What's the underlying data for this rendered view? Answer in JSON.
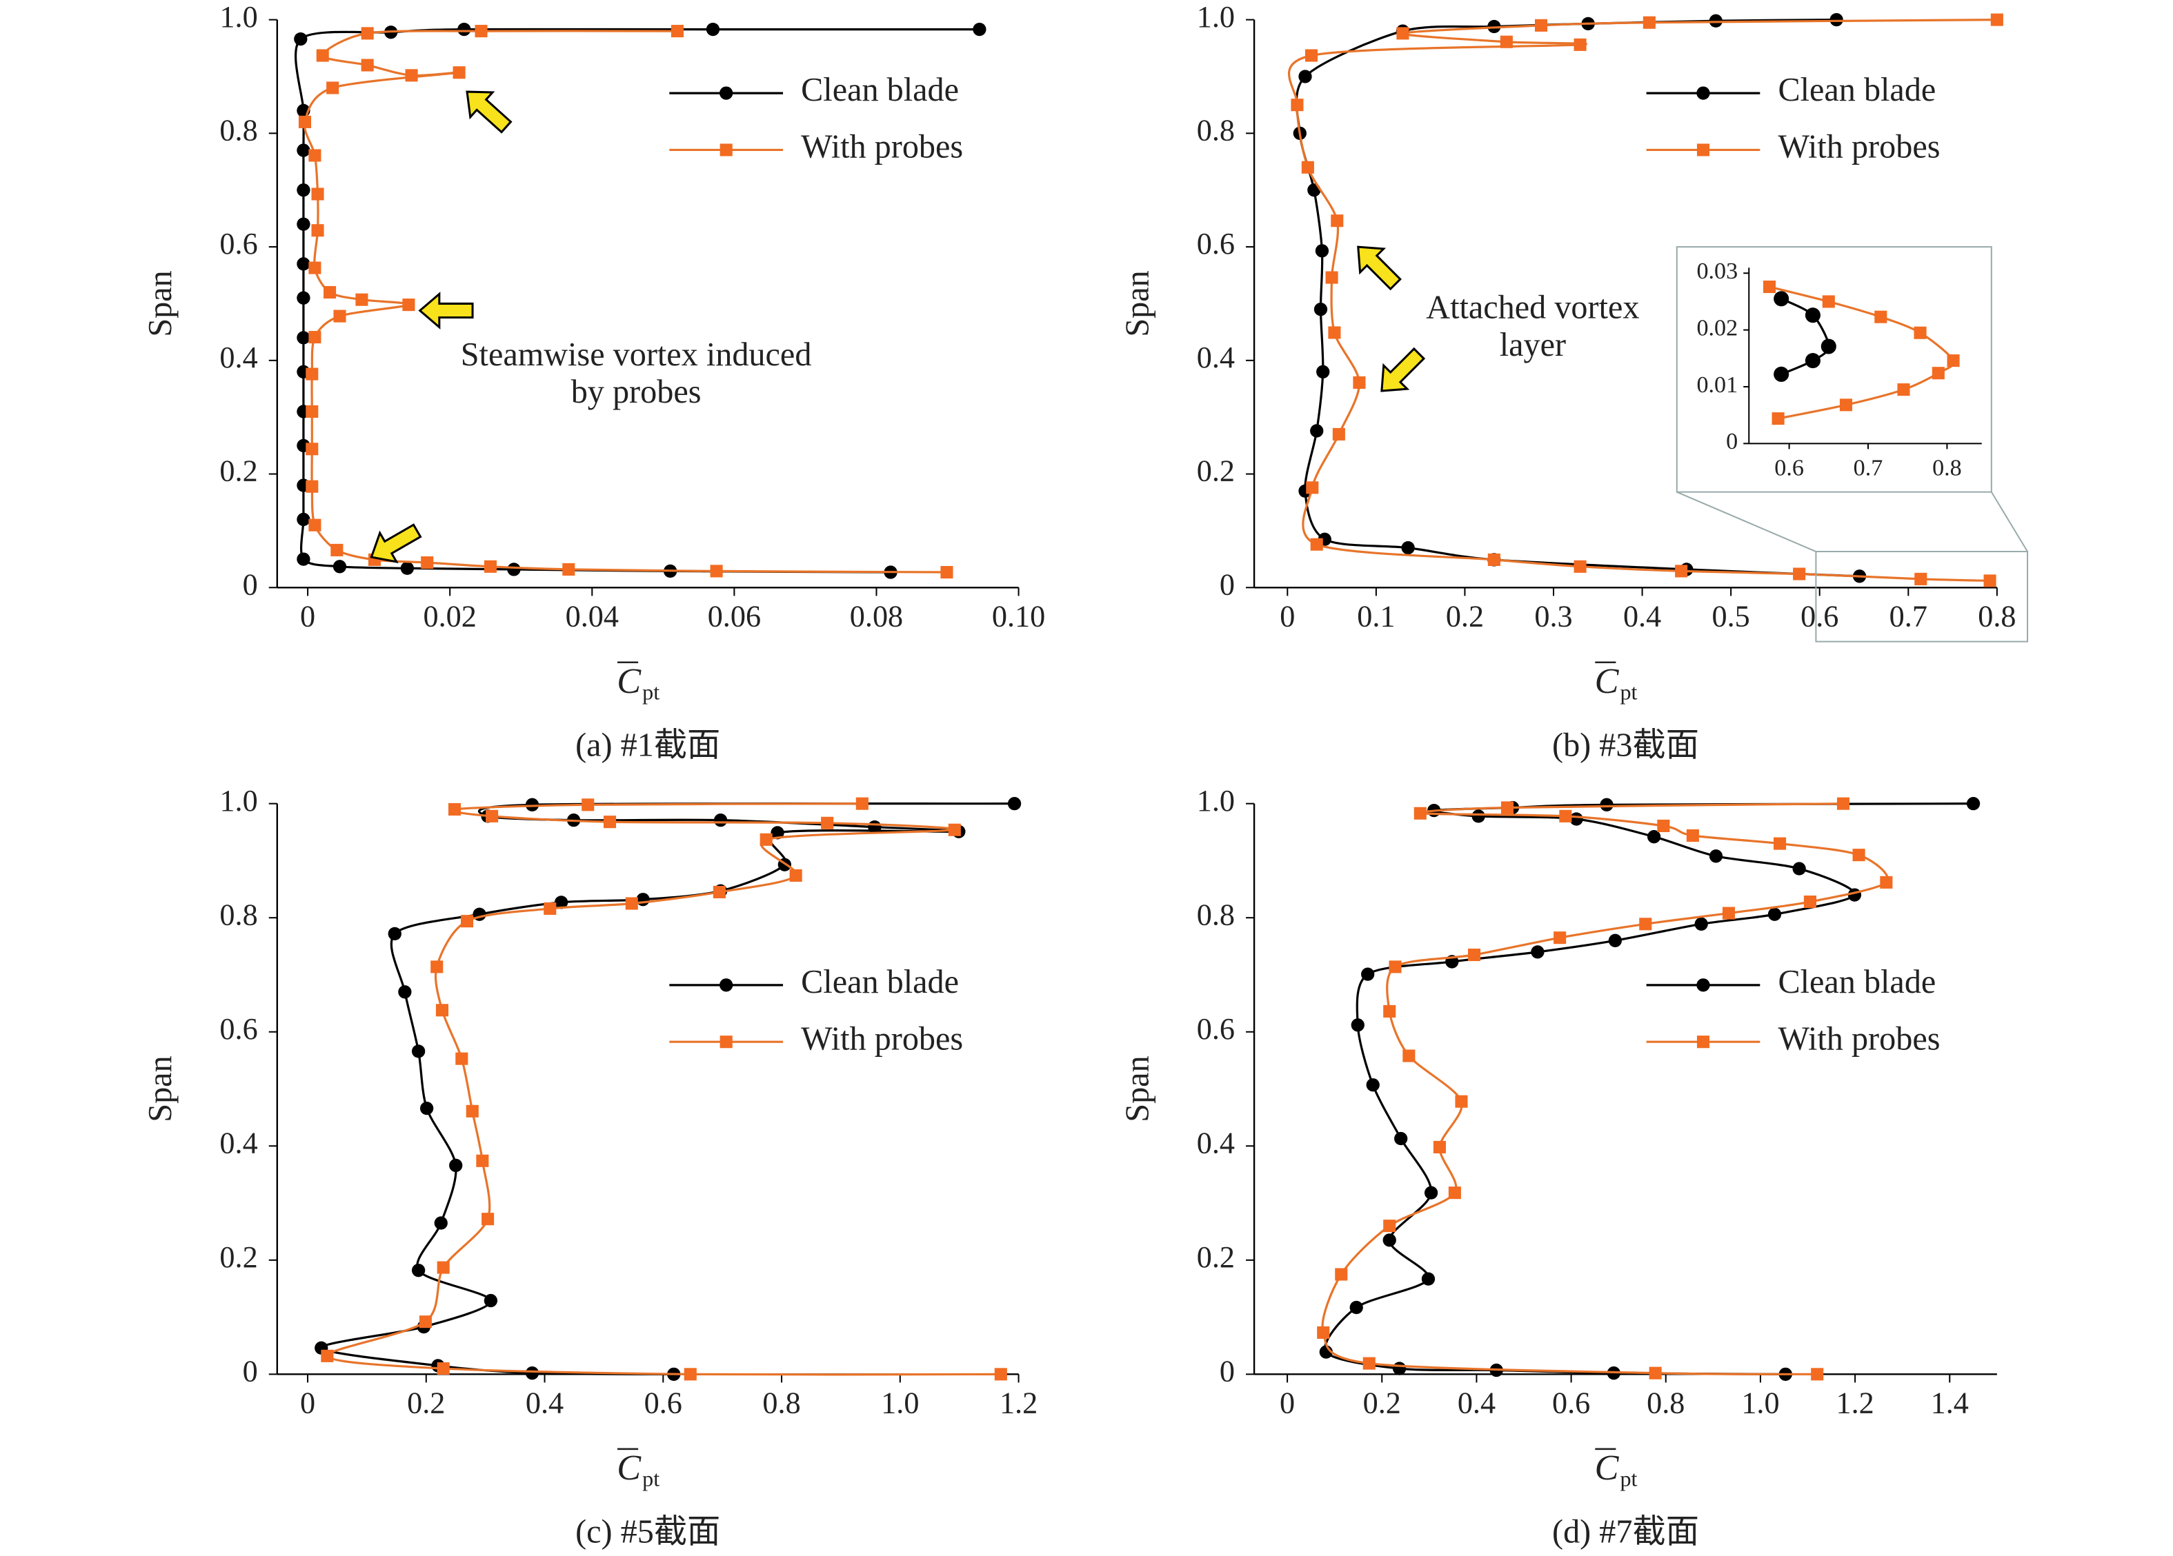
{
  "chart_data": [
    {
      "type": "line",
      "caption": "(a) #1截面",
      "xlabel": "C",
      "xlabel_sub": "pt",
      "ylabel": "Span",
      "xlim": [
        -0.0043,
        0.1
      ],
      "ylim": [
        0,
        1
      ],
      "xticks": [
        0,
        0.02,
        0.04,
        0.06,
        0.08,
        {
          "value": 0.1,
          "label": "0.10"
        }
      ],
      "yticks": [
        0,
        0.2,
        0.4,
        0.6,
        0.8,
        {
          "value": 1,
          "label": "1.0"
        }
      ],
      "legend": "upper right",
      "annotation": [
        "Steamwise vortex induced",
        "by probes"
      ],
      "series": [
        {
          "name": "Clean blade",
          "color": "#000000",
          "marker": "circle",
          "x": [
            0.0945,
            0.057,
            0.022,
            0.0117,
            -0.001,
            -0.0006,
            -0.0006,
            -0.0006,
            -0.0006,
            -0.0006,
            -0.0006,
            -0.0006,
            -0.0006,
            -0.0006,
            -0.0006,
            -0.0006,
            -0.0006,
            -0.0006,
            0.0045,
            0.014,
            0.029,
            0.051,
            0.082
          ],
          "values": [
            0.983,
            0.983,
            0.983,
            0.978,
            0.966,
            0.84,
            0.77,
            0.7,
            0.64,
            0.57,
            0.51,
            0.44,
            0.38,
            0.31,
            0.25,
            0.18,
            0.12,
            0.05,
            0.037,
            0.034,
            0.032,
            0.029,
            0.027
          ]
        },
        {
          "name": "With probes",
          "color": "#f26b21",
          "marker": "square",
          "x": [
            0.052,
            0.0244,
            0.0084,
            0.0021,
            0.0084,
            0.0146,
            0.0213,
            0.0035,
            -0.0004,
            0.001,
            0.0014,
            0.0014,
            0.001,
            0.0031,
            0.0076,
            0.0142,
            0.0045,
            0.001,
            0.0006,
            0.0006,
            0.0006,
            0.0006,
            0.001,
            0.0041,
            0.0094,
            0.0168,
            0.0257,
            0.0367,
            0.0575,
            0.0899
          ],
          "values": [
            0.98,
            0.98,
            0.976,
            0.937,
            0.92,
            0.902,
            0.907,
            0.88,
            0.82,
            0.761,
            0.693,
            0.629,
            0.563,
            0.52,
            0.507,
            0.498,
            0.478,
            0.441,
            0.376,
            0.31,
            0.244,
            0.178,
            0.11,
            0.066,
            0.049,
            0.044,
            0.037,
            0.032,
            0.029,
            0.027
          ]
        }
      ]
    },
    {
      "type": "line",
      "caption": "(b) #3截面",
      "xlabel": "C",
      "xlabel_sub": "pt",
      "ylabel": "Span",
      "xlim": [
        -0.0375,
        0.8
      ],
      "ylim": [
        0,
        1
      ],
      "xticks": [
        0,
        0.1,
        0.2,
        0.3,
        0.4,
        0.5,
        0.6,
        0.7,
        0.8
      ],
      "yticks": [
        0,
        0.2,
        0.4,
        0.6,
        0.8,
        {
          "value": 1,
          "label": "1.0"
        }
      ],
      "legend": "upper right",
      "annotation": [
        "Attached vortex",
        "layer"
      ],
      "series": [
        {
          "name": "Clean blade",
          "color": "#000000",
          "marker": "circle",
          "x": [
            0.619,
            0.483,
            0.339,
            0.233,
            0.13,
            0.02,
            0.014,
            0.03,
            0.039,
            0.0375,
            0.04,
            0.033,
            0.02,
            0.042,
            0.136,
            0.233,
            0.45,
            0.645
          ],
          "values": [
            1,
            0.998,
            0.993,
            0.988,
            0.98,
            0.9,
            0.8,
            0.7,
            0.593,
            0.49,
            0.38,
            0.276,
            0.17,
            0.085,
            0.07,
            0.049,
            0.032,
            0.02
          ]
        },
        {
          "name": "With probes",
          "color": "#f26b21",
          "marker": "square",
          "x": [
            0.8,
            0.408,
            0.286,
            0.13,
            0.247,
            0.33,
            0.027,
            0.011,
            0.023,
            0.056,
            0.05,
            0.053,
            0.081,
            0.058,
            0.028,
            0.033,
            0.233,
            0.33,
            0.444,
            0.577,
            0.714,
            0.792
          ],
          "values": [
            1,
            0.995,
            0.99,
            0.976,
            0.961,
            0.956,
            0.937,
            0.85,
            0.74,
            0.646,
            0.546,
            0.449,
            0.361,
            0.27,
            0.176,
            0.076,
            0.049,
            0.037,
            0.029,
            0.024,
            0.015,
            0.012
          ]
        }
      ],
      "inset": {
        "xlim": [
          0.549,
          0.844
        ],
        "ylim": [
          0,
          0.03
        ],
        "xticks": [
          0.6,
          0.7,
          0.8
        ],
        "yticks": [
          0,
          0.01,
          0.02,
          0.03
        ],
        "series": [
          {
            "color": "#000000",
            "marker": "circle",
            "x": [
              0.59,
              0.63,
              0.65,
              0.63,
              0.59
            ],
            "values": [
              0.0255,
              0.0226,
              0.0171,
              0.0146,
              0.0122
            ]
          },
          {
            "color": "#f26b21",
            "marker": "square",
            "x": [
              0.575,
              0.65,
              0.716,
              0.766,
              0.808,
              0.789,
              0.745,
              0.672,
              0.586
            ],
            "values": [
              0.0276,
              0.025,
              0.0223,
              0.0195,
              0.0146,
              0.0124,
              0.0095,
              0.0068,
              0.0044
            ]
          }
        ]
      }
    },
    {
      "type": "line",
      "caption": "(c) #5截面",
      "xlabel": "C",
      "xlabel_sub": "pt",
      "ylabel": "Span",
      "xlim": [
        -0.0515,
        1.2
      ],
      "ylim": [
        0,
        1
      ],
      "xticks": [
        0,
        0.2,
        0.4,
        0.6,
        0.8,
        {
          "value": 1,
          "label": "1.0"
        },
        1.2
      ],
      "yticks": [
        0,
        0.2,
        0.4,
        0.6,
        0.8,
        {
          "value": 1,
          "label": "1.0"
        }
      ],
      "legend": "center right",
      "series": [
        {
          "name": "Clean blade",
          "color": "#000000",
          "marker": "circle",
          "x": [
            1.193,
            0.379,
            0.304,
            0.449,
            0.697,
            0.957,
            1.099,
            0.793,
            0.805,
            0.697,
            0.566,
            0.428,
            0.29,
            0.147,
            0.164,
            0.187,
            0.201,
            0.25,
            0.225,
            0.187,
            0.309,
            0.196,
            0.023,
            0.22,
            0.379,
            0.618
          ],
          "values": [
            1,
            0.998,
            0.978,
            0.971,
            0.971,
            0.959,
            0.951,
            0.949,
            0.893,
            0.847,
            0.832,
            0.827,
            0.806,
            0.772,
            0.67,
            0.566,
            0.466,
            0.366,
            0.265,
            0.182,
            0.129,
            0.083,
            0.046,
            0.015,
            0.002,
            0
          ]
        },
        {
          "name": "With probes",
          "color": "#f26b21",
          "marker": "square",
          "x": [
            0.936,
            0.473,
            0.248,
            0.311,
            0.51,
            0.877,
            1.092,
            0.774,
            0.824,
            0.695,
            0.547,
            0.409,
            0.269,
            0.218,
            0.227,
            0.26,
            0.278,
            0.295,
            0.304,
            0.229,
            0.199,
            0.033,
            0.229,
            0.646,
            1.17
          ],
          "values": [
            1,
            0.998,
            0.99,
            0.978,
            0.968,
            0.966,
            0.954,
            0.937,
            0.874,
            0.845,
            0.825,
            0.816,
            0.794,
            0.714,
            0.638,
            0.553,
            0.461,
            0.374,
            0.272,
            0.187,
            0.092,
            0.032,
            0.01,
            0,
            0
          ]
        }
      ]
    },
    {
      "type": "line",
      "caption": "(d) #7截面",
      "xlabel": "C",
      "xlabel_sub": "pt",
      "ylabel": "Span",
      "xlim": [
        -0.07,
        1.5
      ],
      "ylim": [
        0,
        1
      ],
      "xticks": [
        0,
        0.2,
        0.4,
        0.6,
        0.8,
        {
          "value": 1,
          "label": "1.0"
        },
        1.2,
        1.4
      ],
      "yticks": [
        0,
        0.2,
        0.4,
        0.6,
        0.8,
        {
          "value": 1,
          "label": "1.0"
        }
      ],
      "legend": "center right",
      "series": [
        {
          "name": "Clean blade",
          "color": "#000000",
          "marker": "circle",
          "x": [
            1.45,
            0.675,
            0.476,
            0.31,
            0.404,
            0.611,
            0.775,
            0.906,
            1.082,
            1.199,
            1.03,
            0.875,
            0.693,
            0.529,
            0.348,
            0.17,
            0.149,
            0.181,
            0.24,
            0.304,
            0.216,
            0.298,
            0.146,
            0.082,
            0.237,
            0.442,
            0.69,
            1.053
          ],
          "values": [
            1,
            0.998,
            0.993,
            0.988,
            0.978,
            0.973,
            0.942,
            0.908,
            0.886,
            0.84,
            0.806,
            0.789,
            0.76,
            0.74,
            0.723,
            0.701,
            0.612,
            0.507,
            0.413,
            0.318,
            0.235,
            0.167,
            0.117,
            0.039,
            0.01,
            0.007,
            0.002,
            0
          ]
        },
        {
          "name": "With probes",
          "color": "#f26b21",
          "marker": "square",
          "x": [
            1.175,
            0.465,
            0.281,
            0.588,
            0.795,
            0.857,
            1.041,
            1.208,
            1.266,
            1.105,
            0.933,
            0.757,
            0.576,
            0.395,
            0.228,
            0.216,
            0.257,
            0.368,
            0.322,
            0.354,
            0.216,
            0.114,
            0.076,
            0.173,
            0.778,
            1.12
          ],
          "values": [
            1,
            0.993,
            0.983,
            0.978,
            0.961,
            0.944,
            0.93,
            0.91,
            0.862,
            0.828,
            0.808,
            0.789,
            0.765,
            0.735,
            0.714,
            0.636,
            0.558,
            0.478,
            0.398,
            0.318,
            0.26,
            0.175,
            0.073,
            0.019,
            0.002,
            0
          ]
        }
      ]
    }
  ]
}
